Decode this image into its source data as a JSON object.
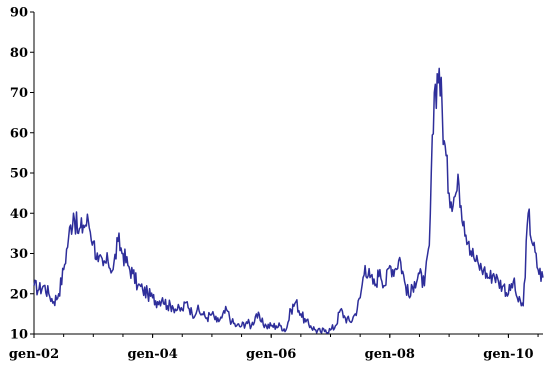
{
  "chart_data": {
    "type": "line",
    "title": "",
    "xlabel": "",
    "ylabel": "",
    "ylim": [
      10,
      90
    ],
    "yticks": [
      10,
      20,
      30,
      40,
      50,
      60,
      70,
      80,
      90
    ],
    "xlim": [
      "2002-01",
      "2010-08"
    ],
    "xticks": [
      {
        "label": "gen-02",
        "date": "2002-01"
      },
      {
        "label": "gen-04",
        "date": "2004-01"
      },
      {
        "label": "gen-06",
        "date": "2006-01"
      },
      {
        "label": "gen-08",
        "date": "2008-01"
      },
      {
        "label": "gen-10",
        "date": "2010-01"
      }
    ],
    "grid": false,
    "legend": "none",
    "series": [
      {
        "color": "#2e2e9a",
        "points": [
          [
            "2002-01",
            22
          ],
          [
            "2002-02",
            21
          ],
          [
            "2002-03",
            22
          ],
          [
            "2002-04",
            20
          ],
          [
            "2002-05",
            18
          ],
          [
            "2002-06",
            20
          ],
          [
            "2002-07",
            26
          ],
          [
            "2002-08",
            34
          ],
          [
            "2002-09",
            40
          ],
          [
            "2002-10",
            35
          ],
          [
            "2002-11",
            37
          ],
          [
            "2002-12",
            38
          ],
          [
            "2003-01",
            33
          ],
          [
            "2003-02",
            28
          ],
          [
            "2003-03",
            27
          ],
          [
            "2003-04",
            28
          ],
          [
            "2003-05",
            26
          ],
          [
            "2003-06",
            33
          ],
          [
            "2003-07",
            30
          ],
          [
            "2003-08",
            27
          ],
          [
            "2003-09",
            25
          ],
          [
            "2003-10",
            22
          ],
          [
            "2003-11",
            21
          ],
          [
            "2003-12",
            20
          ],
          [
            "2004-01",
            19
          ],
          [
            "2004-02",
            18
          ],
          [
            "2004-03",
            19
          ],
          [
            "2004-04",
            17
          ],
          [
            "2004-05",
            17
          ],
          [
            "2004-06",
            16
          ],
          [
            "2004-07",
            16
          ],
          [
            "2004-08",
            18
          ],
          [
            "2004-09",
            15
          ],
          [
            "2004-10",
            16
          ],
          [
            "2004-11",
            15
          ],
          [
            "2004-12",
            14
          ],
          [
            "2005-01",
            15
          ],
          [
            "2005-02",
            13
          ],
          [
            "2005-03",
            14
          ],
          [
            "2005-04",
            16
          ],
          [
            "2005-05",
            13
          ],
          [
            "2005-06",
            12
          ],
          [
            "2005-07",
            12
          ],
          [
            "2005-08",
            13
          ],
          [
            "2005-09",
            12
          ],
          [
            "2005-10",
            15
          ],
          [
            "2005-11",
            13
          ],
          [
            "2005-12",
            12
          ],
          [
            "2006-01",
            12
          ],
          [
            "2006-02",
            12
          ],
          [
            "2006-03",
            12
          ],
          [
            "2006-04",
            11
          ],
          [
            "2006-05",
            16
          ],
          [
            "2006-06",
            18
          ],
          [
            "2006-07",
            15
          ],
          [
            "2006-08",
            13
          ],
          [
            "2006-09",
            12
          ],
          [
            "2006-10",
            11
          ],
          [
            "2006-11",
            10.5
          ],
          [
            "2006-12",
            11
          ],
          [
            "2007-01",
            11
          ],
          [
            "2007-02",
            12
          ],
          [
            "2007-03",
            16
          ],
          [
            "2007-04",
            14
          ],
          [
            "2007-05",
            13
          ],
          [
            "2007-06",
            15
          ],
          [
            "2007-07",
            19
          ],
          [
            "2007-08",
            27
          ],
          [
            "2007-09",
            24
          ],
          [
            "2007-10",
            22
          ],
          [
            "2007-11",
            26
          ],
          [
            "2007-12",
            22
          ],
          [
            "2008-01",
            27
          ],
          [
            "2008-02",
            26
          ],
          [
            "2008-03",
            29
          ],
          [
            "2008-04",
            23
          ],
          [
            "2008-05",
            19
          ],
          [
            "2008-06",
            23
          ],
          [
            "2008-07",
            25
          ],
          [
            "2008-08",
            22
          ],
          [
            "2008-09",
            32
          ],
          [
            "2008-10",
            70
          ],
          [
            "2008-11",
            76
          ],
          [
            "2008-12",
            58
          ],
          [
            "2009-01",
            45
          ],
          [
            "2009-02",
            44
          ],
          [
            "2009-03",
            47
          ],
          [
            "2009-04",
            38
          ],
          [
            "2009-05",
            33
          ],
          [
            "2009-06",
            29
          ],
          [
            "2009-07",
            27
          ],
          [
            "2009-08",
            26
          ],
          [
            "2009-09",
            24
          ],
          [
            "2009-10",
            25
          ],
          [
            "2009-11",
            23
          ],
          [
            "2009-12",
            22
          ],
          [
            "2010-01",
            20
          ],
          [
            "2010-02",
            23
          ],
          [
            "2010-03",
            18
          ],
          [
            "2010-04",
            17
          ],
          [
            "2010-05",
            40
          ],
          [
            "2010-06",
            32
          ],
          [
            "2010-07",
            26
          ],
          [
            "2010-08",
            24
          ]
        ]
      }
    ]
  }
}
